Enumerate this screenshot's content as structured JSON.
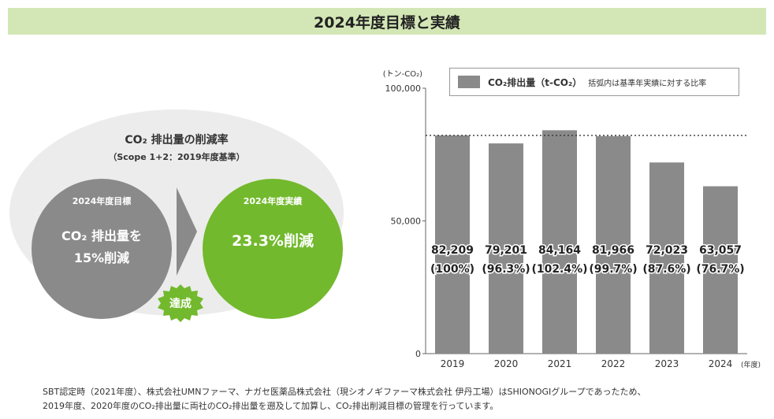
{
  "header": {
    "title": "2024年度目標と実績"
  },
  "summary": {
    "title": "CO₂ 排出量の削減率",
    "subtitle": "（Scope 1+2：2019年度基準）",
    "target": {
      "label": "2024年度目標",
      "line1": "CO₂ 排出量を",
      "line2": "15%削減"
    },
    "result": {
      "label": "2024年度実績",
      "value": "23.3%削減"
    },
    "badge": "達成"
  },
  "legend": {
    "series_label": "CO₂排出量（t-CO₂）",
    "note": "括弧内は基準年実績に対する比率"
  },
  "chart_data": {
    "type": "bar",
    "categories": [
      "2019",
      "2020",
      "2021",
      "2022",
      "2023",
      "2024"
    ],
    "values": [
      82209,
      79201,
      84164,
      81966,
      72023,
      63057
    ],
    "value_labels": [
      "82,209",
      "79,201",
      "84,164",
      "81,966",
      "72,023",
      "63,057"
    ],
    "ratio_labels": [
      "(100%)",
      "(96.3%)",
      "(102.4%)",
      "(99.7%)",
      "(87.6%)",
      "(76.7%)"
    ],
    "ylabel": "(トン-CO₂)",
    "x_unit": "(年度)",
    "ylim": [
      0,
      100000
    ],
    "yticks": [
      0,
      50000,
      100000
    ],
    "ytick_labels": [
      "0",
      "50,000",
      "100,000"
    ],
    "reference_line": 82209,
    "bar_color": "#8a8a8a"
  },
  "footnote": {
    "line1": "SBT認定時（2021年度）、株式会社UMNファーマ、ナガセ医薬品株式会社（現シオノギファーマ株式会社 伊丹工場）はSHIONOGIグループであったため、",
    "line2": "2019年度、2020年度のCO₂排出量に両社のCO₂排出量を遡及して加算し、CO₂排出削減目標の管理を行っています。"
  },
  "colors": {
    "title_bg": "#d3e7b6",
    "green": "#72b92d",
    "gray": "#8a8a8a",
    "ellipse": "#ececec"
  }
}
